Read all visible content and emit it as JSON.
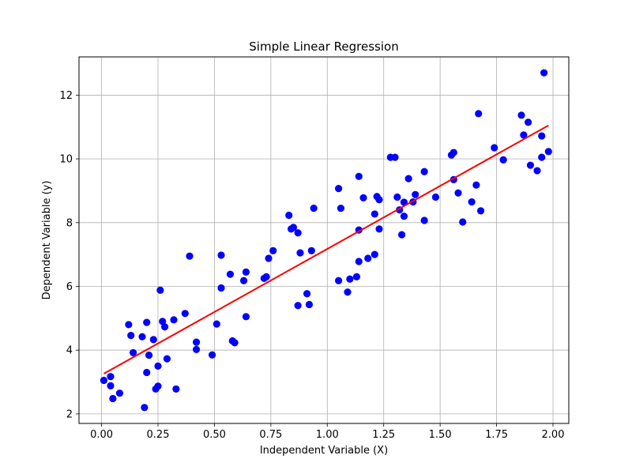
{
  "chart_data": {
    "type": "scatter",
    "title": "Simple Linear Regression",
    "xlabel": "Independent Variable (X)",
    "ylabel": "Dependent Variable (y)",
    "xlim": [
      -0.1,
      2.07
    ],
    "ylim": [
      1.7,
      13.2
    ],
    "x_ticks": [
      0.0,
      0.25,
      0.5,
      0.75,
      1.0,
      1.25,
      1.5,
      1.75,
      2.0
    ],
    "x_tick_labels": [
      "0.00",
      "0.25",
      "0.50",
      "0.75",
      "1.00",
      "1.25",
      "1.50",
      "1.75",
      "2.00"
    ],
    "y_ticks": [
      2,
      4,
      6,
      8,
      10,
      12
    ],
    "y_tick_labels": [
      "2",
      "4",
      "6",
      "8",
      "10",
      "12"
    ],
    "grid": true,
    "scatter_color": "#0000ff",
    "line_color": "#ff0000",
    "points": [
      [
        0.01,
        3.05
      ],
      [
        0.04,
        3.17
      ],
      [
        0.04,
        2.88
      ],
      [
        0.05,
        2.48
      ],
      [
        0.08,
        2.65
      ],
      [
        0.12,
        4.8
      ],
      [
        0.13,
        4.46
      ],
      [
        0.14,
        3.92
      ],
      [
        0.18,
        4.42
      ],
      [
        0.19,
        2.2
      ],
      [
        0.2,
        4.87
      ],
      [
        0.2,
        3.3
      ],
      [
        0.21,
        3.84
      ],
      [
        0.23,
        4.33
      ],
      [
        0.24,
        2.78
      ],
      [
        0.25,
        3.5
      ],
      [
        0.25,
        2.87
      ],
      [
        0.26,
        5.88
      ],
      [
        0.27,
        4.9
      ],
      [
        0.28,
        4.73
      ],
      [
        0.29,
        3.73
      ],
      [
        0.32,
        4.95
      ],
      [
        0.33,
        2.78
      ],
      [
        0.37,
        5.15
      ],
      [
        0.39,
        6.95
      ],
      [
        0.42,
        4.02
      ],
      [
        0.42,
        4.25
      ],
      [
        0.49,
        3.85
      ],
      [
        0.51,
        4.82
      ],
      [
        0.53,
        6.98
      ],
      [
        0.53,
        5.95
      ],
      [
        0.57,
        6.38
      ],
      [
        0.58,
        4.29
      ],
      [
        0.59,
        4.23
      ],
      [
        0.63,
        6.18
      ],
      [
        0.64,
        5.05
      ],
      [
        0.64,
        6.45
      ],
      [
        0.72,
        6.25
      ],
      [
        0.73,
        6.3
      ],
      [
        0.74,
        6.88
      ],
      [
        0.76,
        7.12
      ],
      [
        0.83,
        8.23
      ],
      [
        0.84,
        7.8
      ],
      [
        0.85,
        7.85
      ],
      [
        0.87,
        5.4
      ],
      [
        0.87,
        7.68
      ],
      [
        0.88,
        7.05
      ],
      [
        0.91,
        5.77
      ],
      [
        0.92,
        5.43
      ],
      [
        0.93,
        7.12
      ],
      [
        0.94,
        8.45
      ],
      [
        1.05,
        9.07
      ],
      [
        1.05,
        6.18
      ],
      [
        1.06,
        8.45
      ],
      [
        1.09,
        5.82
      ],
      [
        1.1,
        6.23
      ],
      [
        1.13,
        6.3
      ],
      [
        1.14,
        7.77
      ],
      [
        1.14,
        9.45
      ],
      [
        1.14,
        6.78
      ],
      [
        1.16,
        8.78
      ],
      [
        1.18,
        6.88
      ],
      [
        1.21,
        7.0
      ],
      [
        1.21,
        8.27
      ],
      [
        1.22,
        8.82
      ],
      [
        1.23,
        8.72
      ],
      [
        1.23,
        7.8
      ],
      [
        1.28,
        10.05
      ],
      [
        1.3,
        10.05
      ],
      [
        1.31,
        8.8
      ],
      [
        1.32,
        8.4
      ],
      [
        1.33,
        7.62
      ],
      [
        1.34,
        8.64
      ],
      [
        1.34,
        8.2
      ],
      [
        1.36,
        9.38
      ],
      [
        1.38,
        8.65
      ],
      [
        1.39,
        8.88
      ],
      [
        1.43,
        9.6
      ],
      [
        1.43,
        8.07
      ],
      [
        1.48,
        8.8
      ],
      [
        1.55,
        10.12
      ],
      [
        1.56,
        9.35
      ],
      [
        1.56,
        10.2
      ],
      [
        1.58,
        8.93
      ],
      [
        1.6,
        8.02
      ],
      [
        1.64,
        8.65
      ],
      [
        1.66,
        9.18
      ],
      [
        1.67,
        11.42
      ],
      [
        1.68,
        8.37
      ],
      [
        1.74,
        10.35
      ],
      [
        1.78,
        9.97
      ],
      [
        1.86,
        11.37
      ],
      [
        1.87,
        10.75
      ],
      [
        1.89,
        11.15
      ],
      [
        1.9,
        9.8
      ],
      [
        1.93,
        9.63
      ],
      [
        1.95,
        10.72
      ],
      [
        1.95,
        10.05
      ],
      [
        1.96,
        12.7
      ],
      [
        1.98,
        10.23
      ]
    ],
    "regression_line": {
      "x": [
        0.01,
        1.98
      ],
      "y": [
        3.26,
        11.05
      ]
    }
  }
}
